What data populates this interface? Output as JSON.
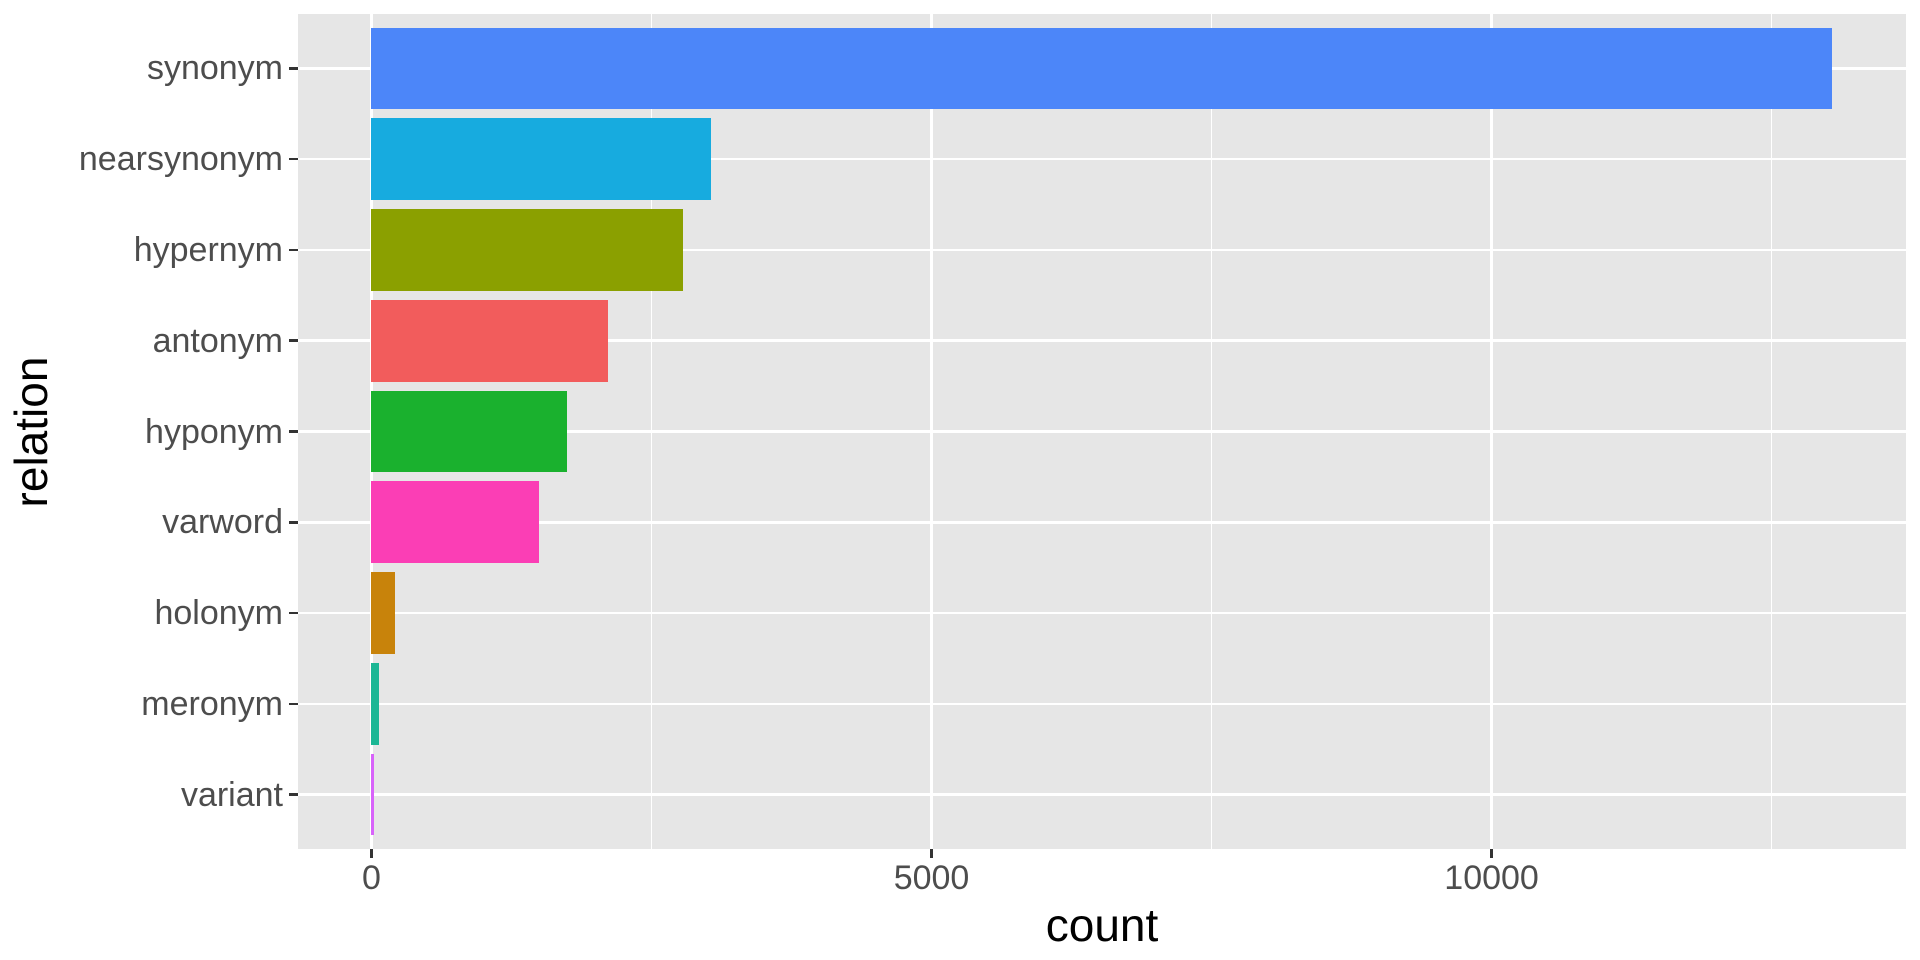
{
  "chart_data": {
    "type": "bar",
    "orientation": "horizontal",
    "title": "",
    "xlabel": "count",
    "ylabel": "relation",
    "categories": [
      "synonym",
      "nearsynonym",
      "hypernym",
      "antonym",
      "hyponym",
      "varword",
      "holonym",
      "meronym",
      "variant"
    ],
    "values": [
      13040,
      3030,
      2780,
      2110,
      1750,
      1500,
      210,
      70,
      20
    ],
    "bar_colors": [
      "#4C86F9",
      "#17ABDF",
      "#8BA000",
      "#F25C5C",
      "#1AB12E",
      "#FB3EB5",
      "#C8830B",
      "#1CB795",
      "#D863FA"
    ],
    "x_ticks": [
      0,
      5000,
      10000
    ],
    "x_tick_labels": [
      "0",
      "5000",
      "10000"
    ],
    "x_minor_ticks": [
      2500,
      7500,
      12500
    ],
    "xlim": [
      -656,
      13700
    ],
    "grid": "on",
    "legend_position": "none",
    "panel_bg": "#E6E6E6",
    "grid_color": "#FFFFFF",
    "tick_color": "#333333",
    "tick_label_color": "#4D4D4D",
    "axis_title_color": "#000000"
  }
}
